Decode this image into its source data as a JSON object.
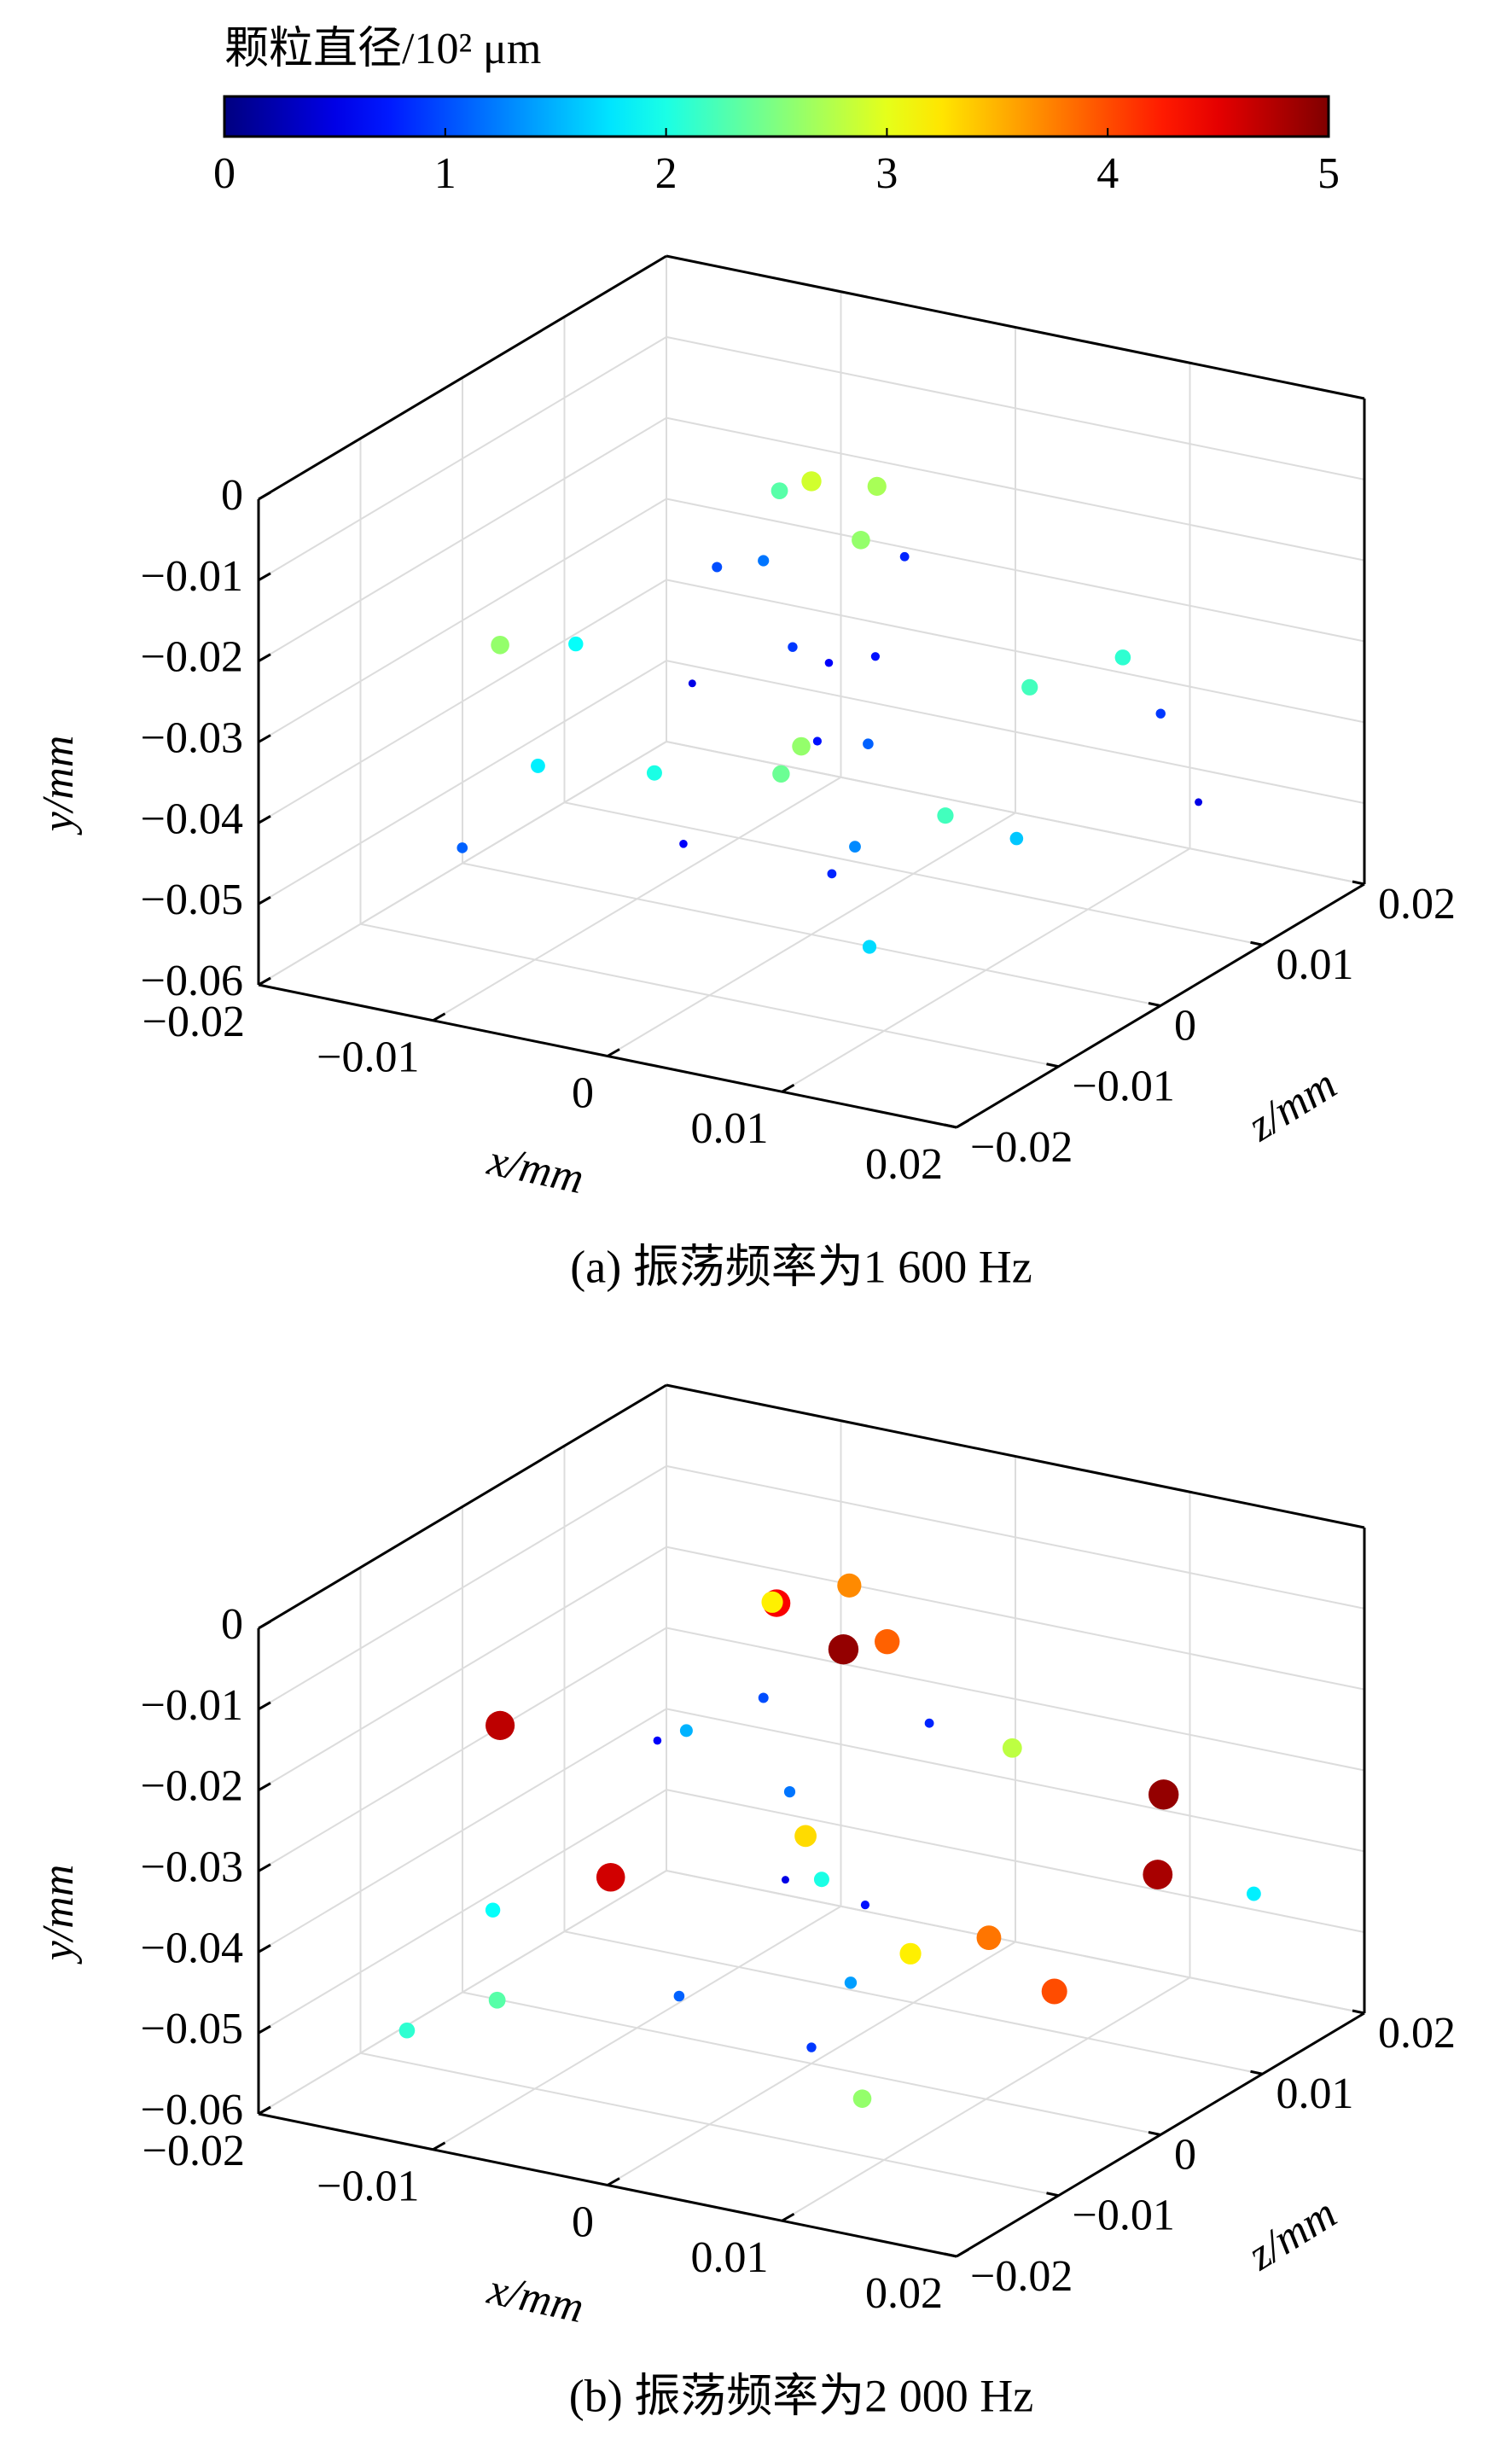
{
  "chart_data": [
    {
      "type": "colorbar",
      "title": "颗粒直径/10² μm",
      "lim": [
        0,
        5
      ],
      "ticks": [
        0,
        1,
        2,
        3,
        4,
        5
      ],
      "colormap": "jet"
    },
    {
      "type": "scatter3d",
      "caption": "(a) 振荡频率为1 600 Hz",
      "xlabel": "x/mm",
      "ylabel": "y/mm",
      "zlabel": "z/mm",
      "xlim": [
        -0.02,
        0.02
      ],
      "ylim": [
        -0.06,
        0
      ],
      "zlim": [
        -0.02,
        0.02
      ],
      "xticks": [
        {
          "value": -0.02,
          "label": "−0.02"
        },
        {
          "value": -0.01,
          "label": "−0.01"
        },
        0,
        0.01,
        0.02
      ],
      "yticks": [
        {
          "value": -0.06,
          "label": "−0.06"
        },
        {
          "value": -0.05,
          "label": "−0.05"
        },
        {
          "value": -0.04,
          "label": "−0.04"
        },
        {
          "value": -0.03,
          "label": "−0.03"
        },
        {
          "value": -0.02,
          "label": "−0.02"
        },
        {
          "value": -0.01,
          "label": "−0.01"
        },
        0
      ],
      "zticks": [
        {
          "value": -0.02,
          "label": "−0.02"
        },
        {
          "value": -0.01,
          "label": "−0.01"
        },
        0,
        0.01,
        0.02
      ],
      "grid": true,
      "points": {
        "x": [
          0.0,
          0.002,
          -0.003,
          0.004,
          -0.001,
          0.003,
          -0.006,
          0.006,
          -0.012,
          -0.01,
          0.012,
          0.001,
          -0.004,
          0.005,
          -0.008,
          0.009,
          0.0,
          -0.011,
          0.013,
          -0.002,
          0.006,
          -0.009,
          0.01,
          -0.005,
          0.003,
          -0.013,
          0.008,
          0.0,
          -0.007,
          0.014
        ],
        "y": [
          -0.004,
          -0.006,
          -0.008,
          -0.008,
          -0.012,
          -0.015,
          -0.018,
          -0.02,
          -0.022,
          -0.024,
          -0.028,
          -0.026,
          -0.03,
          -0.032,
          -0.034,
          -0.03,
          -0.036,
          -0.038,
          -0.036,
          -0.04,
          -0.042,
          -0.044,
          -0.046,
          -0.048,
          -0.05,
          -0.046,
          -0.052,
          -0.054,
          -0.05,
          -0.048
        ],
        "z": [
          0.0,
          0.003,
          0.002,
          -0.002,
          -0.003,
          0.004,
          0.001,
          -0.004,
          -0.01,
          -0.006,
          0.01,
          0.0,
          0.005,
          -0.003,
          0.002,
          0.006,
          -0.001,
          -0.008,
          0.012,
          0.004,
          -0.006,
          0.0,
          0.003,
          -0.004,
          0.008,
          -0.012,
          -0.008,
          0.002,
          0.009,
          0.014
        ],
        "size": [
          2.9,
          2.7,
          2.3,
          2.6,
          1.2,
          0.8,
          1.0,
          0.7,
          2.6,
          1.9,
          2.1,
          0.6,
          0.9,
          1.1,
          0.5,
          2.2,
          2.6,
          1.8,
          0.9,
          0.7,
          1.3,
          2.0,
          1.6,
          0.6,
          2.2,
          1.1,
          1.7,
          0.8,
          2.4,
          0.5
        ]
      }
    },
    {
      "type": "scatter3d",
      "caption": "(b) 振荡频率为2 000 Hz",
      "xlabel": "x/mm",
      "ylabel": "y/mm",
      "zlabel": "z/mm",
      "xlim": [
        -0.02,
        0.02
      ],
      "ylim": [
        -0.06,
        0
      ],
      "zlim": [
        -0.02,
        0.02
      ],
      "xticks": [
        {
          "value": -0.02,
          "label": "−0.02"
        },
        {
          "value": -0.01,
          "label": "−0.01"
        },
        0,
        0.01,
        0.02
      ],
      "yticks": [
        {
          "value": -0.06,
          "label": "−0.06"
        },
        {
          "value": -0.05,
          "label": "−0.05"
        },
        {
          "value": -0.04,
          "label": "−0.04"
        },
        {
          "value": -0.03,
          "label": "−0.03"
        },
        {
          "value": -0.02,
          "label": "−0.02"
        },
        {
          "value": -0.01,
          "label": "−0.01"
        },
        0
      ],
      "zticks": [
        {
          "value": -0.02,
          "label": "−0.02"
        },
        {
          "value": -0.01,
          "label": "−0.01"
        },
        0,
        0.01,
        0.02
      ],
      "grid": true,
      "points": {
        "x": [
          0.001,
          -0.002,
          0.003,
          -0.004,
          0.002,
          -0.001,
          -0.012,
          0.005,
          -0.006,
          0.008,
          -0.01,
          0.002,
          0.012,
          -0.003,
          0.006,
          -0.008,
          0.014,
          0.0,
          -0.013,
          0.009,
          -0.005,
          0.004,
          -0.011,
          0.011,
          0.001,
          -0.007,
          0.007,
          -0.015,
          0.016,
          0.0
        ],
        "y": [
          -0.002,
          -0.004,
          -0.006,
          -0.007,
          -0.01,
          -0.013,
          -0.016,
          -0.018,
          -0.02,
          -0.022,
          -0.026,
          -0.028,
          -0.032,
          -0.03,
          -0.034,
          -0.036,
          -0.038,
          -0.038,
          -0.04,
          -0.042,
          -0.044,
          -0.046,
          -0.048,
          -0.05,
          -0.052,
          -0.054,
          -0.056,
          -0.052,
          -0.044,
          -0.058
        ],
        "z": [
          0.002,
          0.0,
          -0.002,
          0.003,
          0.004,
          -0.003,
          -0.01,
          0.003,
          -0.002,
          0.006,
          0.002,
          -0.004,
          0.014,
          0.003,
          -0.005,
          -0.006,
          0.01,
          0.001,
          -0.009,
          0.002,
          0.006,
          -0.003,
          -0.012,
          0.005,
          0.008,
          -0.001,
          -0.007,
          -0.014,
          0.016,
          0.0
        ],
        "size": [
          3.7,
          4.4,
          4.9,
          3.2,
          3.9,
          1.0,
          4.7,
          0.8,
          1.5,
          2.8,
          0.6,
          3.3,
          4.9,
          1.2,
          0.7,
          4.6,
          4.8,
          2.0,
          1.9,
          3.8,
          0.5,
          1.4,
          2.3,
          4.0,
          3.2,
          1.1,
          2.6,
          2.1,
          1.8,
          0.9
        ]
      }
    }
  ]
}
